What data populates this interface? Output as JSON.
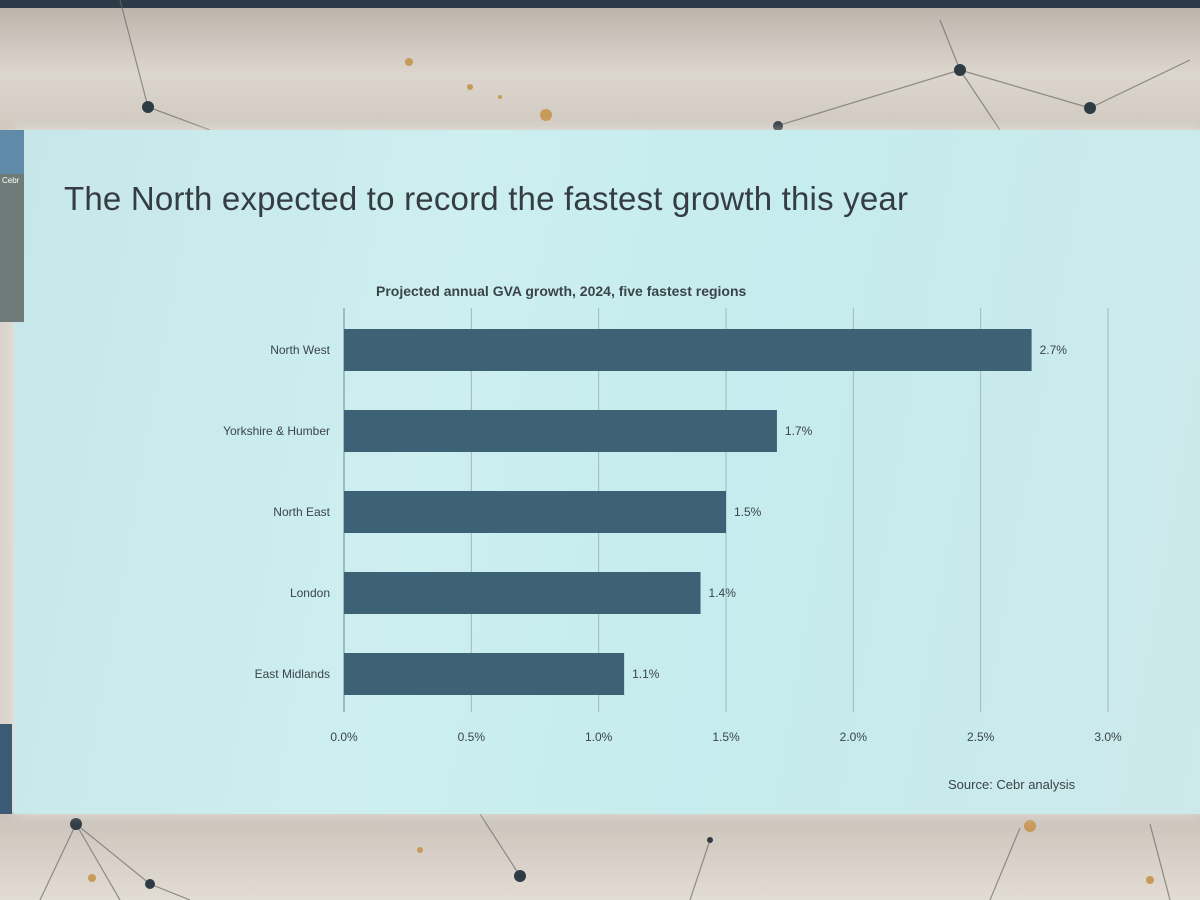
{
  "slide": {
    "title": "The North expected to record the fastest growth this year",
    "side_label": "Cebr",
    "source": "Source: Cebr analysis"
  },
  "colors": {
    "bar": "#3d6275",
    "grid": "#9fb9bd",
    "axis_text": "#3a4449",
    "screen": "#c9ecee"
  },
  "chart_data": {
    "type": "bar",
    "orientation": "horizontal",
    "title": "Projected annual GVA growth, 2024, five fastest regions",
    "categories": [
      "North West",
      "Yorkshire & Humber",
      "North East",
      "London",
      "East Midlands"
    ],
    "values": [
      2.7,
      1.7,
      1.5,
      1.4,
      1.1
    ],
    "data_labels": [
      "2.7%",
      "1.7%",
      "1.5%",
      "1.4%",
      "1.1%"
    ],
    "x_ticks": [
      0.0,
      0.5,
      1.0,
      1.5,
      2.0,
      2.5,
      3.0
    ],
    "x_tick_labels": [
      "0.0%",
      "0.5%",
      "1.0%",
      "1.5%",
      "2.0%",
      "2.5%",
      "3.0%"
    ],
    "xlim": [
      0,
      3.0
    ],
    "xlabel": "",
    "ylabel": "",
    "grid": "vertical",
    "legend": "none"
  }
}
